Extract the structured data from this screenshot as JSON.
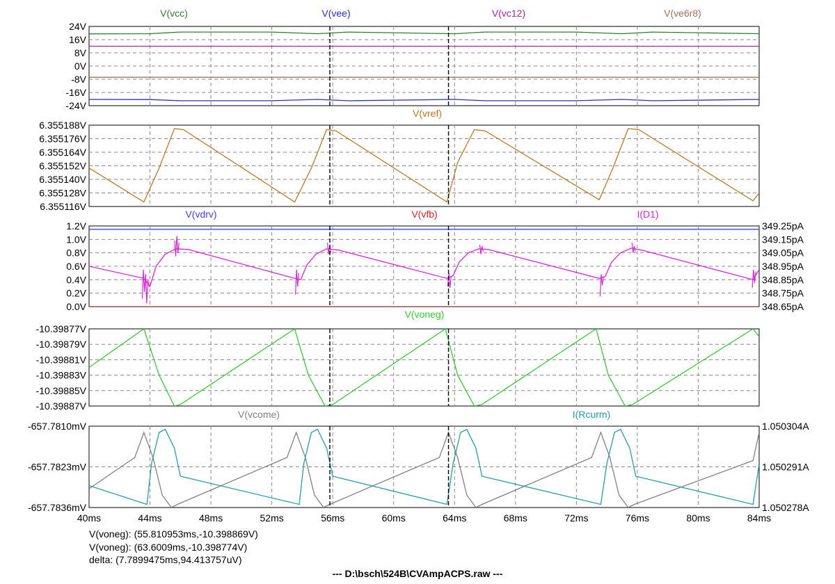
{
  "window": {
    "footer_file": "---  D:\\bsch\\524B\\CVAmpACPS.raw  ---"
  },
  "cursor_readouts": {
    "cursor1": "V(voneg): (55.810953ms,-10.398869V)",
    "cursor2": "V(voneg): (63.6009ms,-10.398774V)",
    "delta": "delta: (7.7899475ms,94.413757uV)"
  },
  "colors": {
    "vcc": "#2e7d32",
    "vee": "#2a2ad6",
    "vc12": "#b020b0",
    "ve6r8": "#a0705a",
    "vref": "#c07820",
    "vdrv": "#4040ff",
    "vfb": "#e02020",
    "id1": "#e020e0",
    "voneg": "#33cc33",
    "vcome": "#808080",
    "ircurm": "#20a0a8"
  },
  "chart_data": [
    {
      "type": "line",
      "pane": "supplies",
      "x_unit": "ms",
      "xlim": [
        40,
        84
      ],
      "ylim": [
        -24,
        24
      ],
      "y_ticks": [
        "24V",
        "16V",
        "8V",
        "0V",
        "-8V",
        "-16V",
        "-24V"
      ],
      "y_tick_values": [
        24,
        16,
        8,
        0,
        -8,
        -16,
        -24
      ],
      "series": [
        {
          "name": "V(vcc)",
          "color_key": "vcc",
          "x": [
            40,
            44,
            46,
            52,
            55,
            57,
            64,
            66,
            72,
            75,
            77,
            84
          ],
          "y": [
            19.5,
            19.6,
            20.6,
            20.6,
            19.6,
            20.6,
            19.6,
            20.6,
            20.6,
            19.6,
            20.6,
            19.6
          ]
        },
        {
          "name": "V(vee)",
          "color_key": "vee",
          "x": [
            40,
            44,
            46,
            52,
            55,
            57,
            64,
            66,
            72,
            75,
            77,
            84
          ],
          "y": [
            -20.2,
            -20.3,
            -21.0,
            -21.0,
            -20.2,
            -21.0,
            -20.2,
            -21.0,
            -21.0,
            -20.2,
            -21.0,
            -20.2
          ]
        },
        {
          "name": "V(vc12)",
          "color_key": "vc12",
          "x": [
            40,
            84
          ],
          "y": [
            12,
            12
          ]
        },
        {
          "name": "V(ve6r8)",
          "color_key": "ve6r8",
          "x": [
            40,
            84
          ],
          "y": [
            -6.8,
            -6.8
          ]
        }
      ]
    },
    {
      "type": "line",
      "pane": "vref",
      "x_unit": "ms",
      "xlim": [
        40,
        84
      ],
      "ylim": [
        6.355116,
        6.355188
      ],
      "y_ticks": [
        "6.355188V",
        "6.355176V",
        "6.355164V",
        "6.355152V",
        "6.355140V",
        "6.355128V",
        "6.355116V"
      ],
      "y_tick_values": [
        6.355188,
        6.355176,
        6.355164,
        6.355152,
        6.35514,
        6.355128,
        6.355116
      ],
      "series": [
        {
          "name": "V(vref)",
          "color_key": "vref",
          "x": [
            40,
            43.6,
            44.6,
            45.6,
            46.2,
            53.5,
            54.6,
            55.6,
            56.2,
            63.5,
            64.2,
            65.3,
            66.0,
            73.5,
            74.4,
            75.4,
            76.1,
            83.6,
            84
          ],
          "y": [
            6.35515,
            6.35512,
            6.35515,
            6.355185,
            6.355184,
            6.35512,
            6.35515,
            6.355184,
            6.355183,
            6.35512,
            6.355155,
            6.355184,
            6.355183,
            6.355122,
            6.35515,
            6.355185,
            6.355184,
            6.355121,
            6.355128
          ]
        }
      ]
    },
    {
      "type": "line",
      "pane": "drive",
      "x_unit": "ms",
      "xlim": [
        40,
        84
      ],
      "ylim": [
        0,
        1.2
      ],
      "y_ticks": [
        "1.2V",
        "1.0V",
        "0.8V",
        "0.6V",
        "0.4V",
        "0.2V",
        "0.0V"
      ],
      "y_tick_values": [
        1.2,
        1.0,
        0.8,
        0.6,
        0.4,
        0.2,
        0.0
      ],
      "y2_ticks": [
        "349.25pA",
        "349.15pA",
        "349.05pA",
        "348.95pA",
        "348.85pA",
        "348.75pA",
        "348.65pA"
      ],
      "series": [
        {
          "name": "V(vdrv)",
          "color_key": "vdrv",
          "x": [
            40,
            84
          ],
          "y": [
            1.15,
            1.15
          ]
        },
        {
          "name": "V(vfb)",
          "color_key": "vfb",
          "x": [
            40,
            84
          ],
          "y": [
            0.0,
            0.0
          ]
        },
        {
          "name": "I(D1)",
          "color_key": "id1",
          "x": [
            40,
            43.6,
            44.0,
            44.4,
            45.0,
            45.7,
            46.5,
            53.5,
            53.9,
            54.3,
            54.9,
            55.6,
            56.4,
            63.5,
            63.9,
            64.3,
            64.9,
            65.6,
            66.2,
            73.5,
            73.9,
            74.3,
            74.9,
            75.6,
            76.3,
            83.6,
            84
          ],
          "y": [
            0.6,
            0.42,
            0.3,
            0.6,
            0.78,
            0.86,
            0.85,
            0.42,
            0.4,
            0.62,
            0.78,
            0.86,
            0.84,
            0.42,
            0.46,
            0.66,
            0.8,
            0.86,
            0.85,
            0.42,
            0.45,
            0.66,
            0.8,
            0.87,
            0.84,
            0.4,
            0.55
          ],
          "spikes": [
            {
              "x": 43.75,
              "values": [
                0.12,
                0.55,
                0.22,
                0.48,
                0.05,
                0.4,
                0.3
              ]
            },
            {
              "x": 45.8,
              "values": [
                0.98,
                0.75,
                1.05,
                0.8,
                0.95
              ]
            },
            {
              "x": 53.7,
              "values": [
                0.18,
                0.55,
                0.3,
                0.5
              ]
            },
            {
              "x": 55.8,
              "values": [
                0.95,
                0.78,
                0.9,
                0.8
              ]
            },
            {
              "x": 63.7,
              "values": [
                0.3,
                0.5,
                0.28,
                0.45
              ]
            },
            {
              "x": 65.8,
              "values": [
                0.92,
                0.78,
                0.9,
                0.82
              ]
            },
            {
              "x": 73.7,
              "values": [
                0.15,
                0.48,
                0.32,
                0.44
              ]
            },
            {
              "x": 75.8,
              "values": [
                0.95,
                0.8,
                0.9,
                0.82
              ]
            },
            {
              "x": 83.7,
              "values": [
                0.28,
                0.55,
                0.35,
                0.52
              ]
            }
          ]
        }
      ]
    },
    {
      "type": "line",
      "pane": "voneg",
      "x_unit": "ms",
      "xlim": [
        40,
        84
      ],
      "ylim": [
        -10.39887,
        -10.39877
      ],
      "y_ticks": [
        "-10.39877V",
        "-10.39879V",
        "-10.39881V",
        "-10.39883V",
        "-10.39885V",
        "-10.39887V"
      ],
      "y_tick_values": [
        -10.39877,
        -10.39879,
        -10.39881,
        -10.39883,
        -10.39885,
        -10.39887
      ],
      "series": [
        {
          "name": "V(voneg)",
          "color_key": "voneg",
          "x": [
            40,
            43.6,
            44.6,
            45.6,
            46.0,
            53.5,
            54.4,
            55.5,
            56.0,
            63.4,
            64.2,
            65.3,
            65.8,
            73.3,
            74.1,
            75.2,
            75.7,
            83.6,
            84
          ],
          "y": [
            -10.39882,
            -10.39877,
            -10.39883,
            -10.39887,
            -10.398868,
            -10.39877,
            -10.39883,
            -10.39887,
            -10.398868,
            -10.39877,
            -10.39883,
            -10.39887,
            -10.398868,
            -10.39877,
            -10.39883,
            -10.39887,
            -10.398868,
            -10.39877,
            -10.39878
          ]
        }
      ]
    },
    {
      "type": "line",
      "pane": "currents",
      "x_unit": "ms",
      "xlim": [
        40,
        84
      ],
      "ylim": [
        -657.7836,
        -657.781
      ],
      "y_ticks": [
        "-657.7810mV",
        "-657.7823mV",
        "-657.7836mV"
      ],
      "y_tick_values": [
        -657.781,
        -657.7823,
        -657.7836
      ],
      "y2_ticks": [
        "1.050304A",
        "1.050291A",
        "1.050278A"
      ],
      "series": [
        {
          "name": "V(vcome)",
          "color_key": "vcome",
          "x": [
            40,
            43.0,
            43.6,
            44.2,
            44.8,
            45.4,
            45.8,
            53.0,
            53.6,
            54.2,
            54.8,
            55.4,
            55.8,
            63.0,
            63.6,
            64.2,
            64.8,
            65.4,
            65.8,
            73.0,
            73.6,
            74.2,
            74.8,
            75.4,
            75.8,
            83.6,
            84
          ],
          "y": [
            -657.783,
            -657.782,
            -657.7812,
            -657.782,
            -657.7832,
            -657.7836,
            -657.7835,
            -657.782,
            -657.7812,
            -657.782,
            -657.7832,
            -657.7836,
            -657.7835,
            -657.782,
            -657.7812,
            -657.782,
            -657.7832,
            -657.7836,
            -657.7835,
            -657.782,
            -657.7812,
            -657.782,
            -657.7832,
            -657.7836,
            -657.7835,
            -657.7821,
            -657.7812
          ]
        },
        {
          "name": "I(Rcurm)",
          "color_key": "ircurm",
          "x": [
            40,
            43.8,
            44.1,
            44.6,
            45.0,
            45.6,
            46.0,
            53.8,
            54.1,
            54.6,
            55.0,
            55.6,
            56.0,
            63.5,
            63.9,
            64.4,
            64.8,
            65.4,
            65.8,
            73.6,
            74.0,
            74.5,
            74.9,
            75.5,
            75.9,
            83.6,
            84
          ],
          "y": [
            -657.7829,
            -657.7835,
            -657.7822,
            -657.7812,
            -657.7811,
            -657.7817,
            -657.7826,
            -657.7835,
            -657.7822,
            -657.7812,
            -657.7811,
            -657.7817,
            -657.7826,
            -657.7835,
            -657.7822,
            -657.7812,
            -657.7811,
            -657.7817,
            -657.7826,
            -657.7835,
            -657.7822,
            -657.7812,
            -657.7811,
            -657.7817,
            -657.7826,
            -657.7835,
            -657.7822
          ]
        }
      ]
    }
  ],
  "x_axis": {
    "ticks": [
      "40ms",
      "44ms",
      "48ms",
      "52ms",
      "56ms",
      "60ms",
      "64ms",
      "68ms",
      "72ms",
      "76ms",
      "80ms",
      "84ms"
    ],
    "tick_values": [
      40,
      44,
      48,
      52,
      56,
      60,
      64,
      68,
      72,
      76,
      80,
      84
    ]
  },
  "cursors": {
    "x1": 55.810953,
    "x2": 63.6009
  }
}
